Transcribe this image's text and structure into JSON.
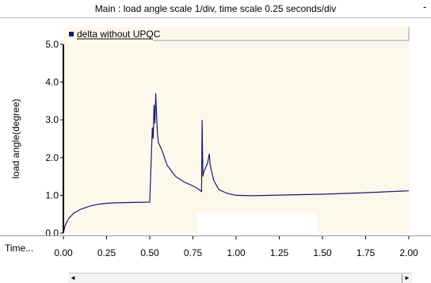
{
  "window": {
    "title": "Main : load angle scale 1/div, time scale 0.25 seconds/div",
    "minimize_glyph": "-"
  },
  "time_label": "Time...",
  "scrollbar": {
    "left_arrow": "◄",
    "right_arrow": "►"
  },
  "colors": {
    "plot_background": "#fdf8ec",
    "trace": "#1a1a6e",
    "legend_marker": "#1a1a6e",
    "axis": "#000000"
  },
  "chart_data": {
    "type": "line",
    "title": "",
    "ylabel": "load angle(degree)",
    "xlabel": "",
    "xlim": [
      0,
      2
    ],
    "ylim": [
      0,
      5
    ],
    "x_ticks": [
      "0.00",
      "0.25",
      "0.50",
      "0.75",
      "1.00",
      "1.25",
      "1.50",
      "1.75",
      "2.00"
    ],
    "y_ticks": [
      "0.0",
      "1.0",
      "2.0",
      "3.0",
      "4.0",
      "5.0"
    ],
    "grid": false,
    "legend": "top-left",
    "series": [
      {
        "name": "delta without UPQC",
        "x": [
          0.0,
          0.01,
          0.03,
          0.06,
          0.1,
          0.15,
          0.2,
          0.25,
          0.3,
          0.4,
          0.5,
          0.505,
          0.515,
          0.52,
          0.525,
          0.53,
          0.535,
          0.54,
          0.545,
          0.55,
          0.57,
          0.6,
          0.65,
          0.7,
          0.75,
          0.77,
          0.8,
          0.803,
          0.808,
          0.812,
          0.82,
          0.835,
          0.845,
          0.85,
          0.87,
          0.9,
          0.95,
          1.0,
          1.1,
          1.2,
          1.3,
          1.5,
          1.7,
          1.8,
          1.9,
          2.0
        ],
        "y": [
          0.0,
          0.2,
          0.38,
          0.53,
          0.63,
          0.71,
          0.76,
          0.79,
          0.8,
          0.81,
          0.82,
          1.5,
          2.8,
          2.5,
          3.4,
          2.9,
          3.7,
          3.1,
          2.6,
          2.4,
          2.2,
          1.8,
          1.5,
          1.35,
          1.25,
          1.2,
          1.1,
          3.0,
          1.5,
          1.6,
          1.7,
          1.85,
          2.1,
          1.8,
          1.4,
          1.15,
          1.05,
          1.0,
          0.99,
          1.0,
          1.01,
          1.03,
          1.06,
          1.08,
          1.1,
          1.12
        ]
      }
    ]
  }
}
